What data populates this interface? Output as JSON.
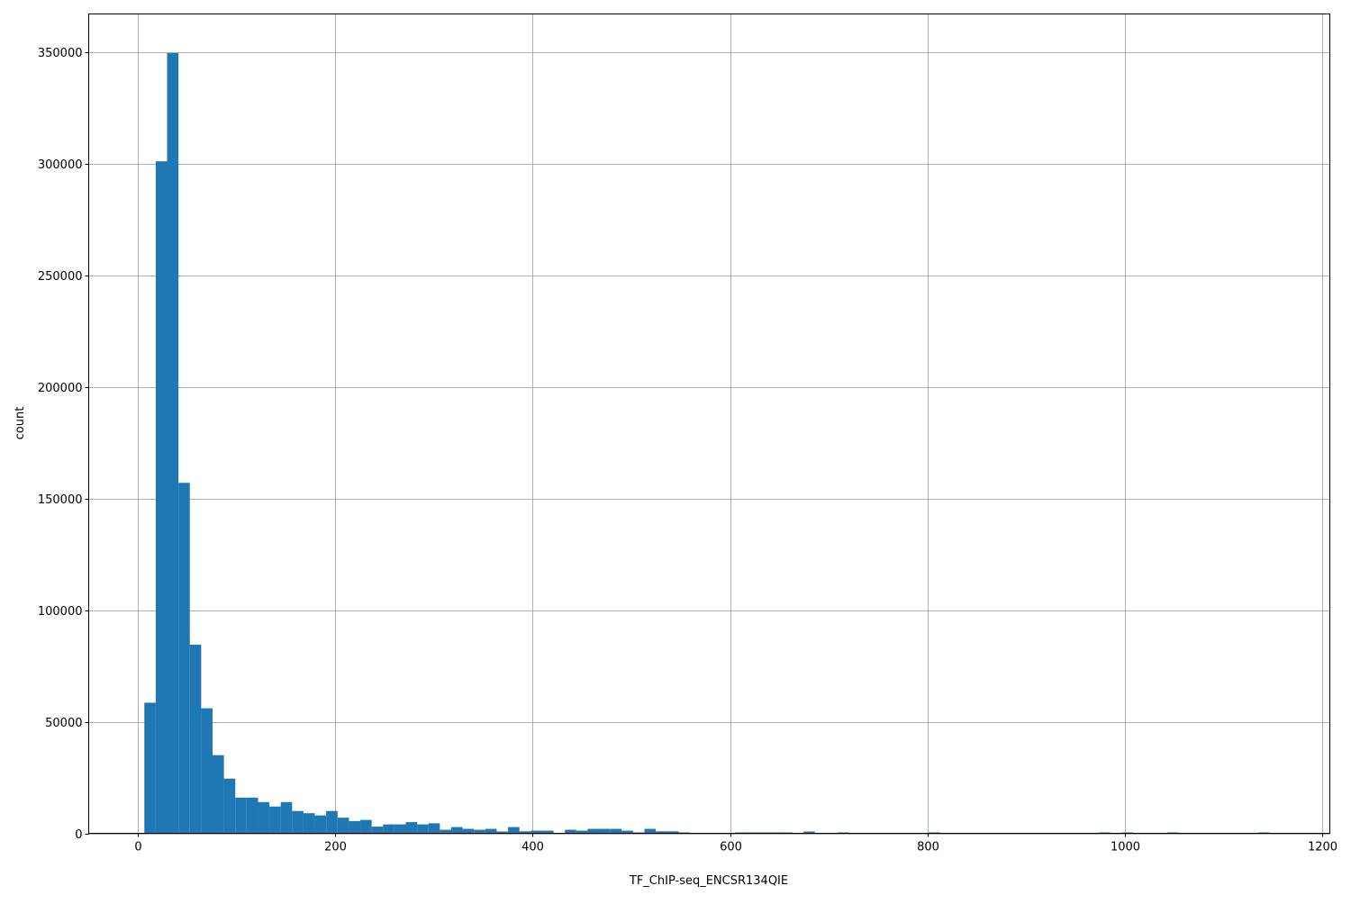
{
  "chart_data": {
    "type": "bar",
    "subtype": "histogram",
    "title": "",
    "xlabel": "TF_ChIP-seq_ENCSR134QIE",
    "ylabel": "count",
    "xlim": [
      -50,
      1208
    ],
    "ylim": [
      0,
      367000
    ],
    "grid": true,
    "color": "#1f77b4",
    "bin_start": 6.4,
    "bin_width": 11.52,
    "values": [
      58500,
      301000,
      349500,
      157000,
      84500,
      56000,
      35000,
      24500,
      16000,
      16000,
      14000,
      12000,
      14000,
      10000,
      9000,
      8000,
      10000,
      7000,
      5500,
      6000,
      3000,
      4000,
      4000,
      5000,
      4000,
      4500,
      1600,
      2800,
      2000,
      1600,
      2000,
      800,
      2800,
      900,
      1200,
      1200,
      0,
      1600,
      1200,
      2000,
      2000,
      2000,
      1200,
      400,
      2000,
      900,
      900,
      400,
      0,
      0,
      0,
      0,
      400,
      400,
      400,
      400,
      400,
      0,
      800,
      0,
      0,
      400,
      0,
      0,
      0,
      0,
      0,
      0,
      0,
      400,
      0,
      0,
      0,
      0,
      0,
      0,
      0,
      0,
      0,
      0,
      0,
      0,
      0,
      0,
      400,
      0,
      400,
      0,
      0,
      0,
      400,
      0,
      0,
      0,
      0,
      0,
      0,
      0,
      400,
      0
    ],
    "xticks": [
      0,
      200,
      400,
      600,
      800,
      1000,
      1200
    ],
    "xtick_labels": [
      "0",
      "200",
      "400",
      "600",
      "800",
      "1000",
      "1200"
    ],
    "yticks": [
      0,
      50000,
      100000,
      150000,
      200000,
      250000,
      300000,
      350000
    ],
    "ytick_labels": [
      "0",
      "50000",
      "100000",
      "150000",
      "200000",
      "250000",
      "300000",
      "350000"
    ]
  }
}
